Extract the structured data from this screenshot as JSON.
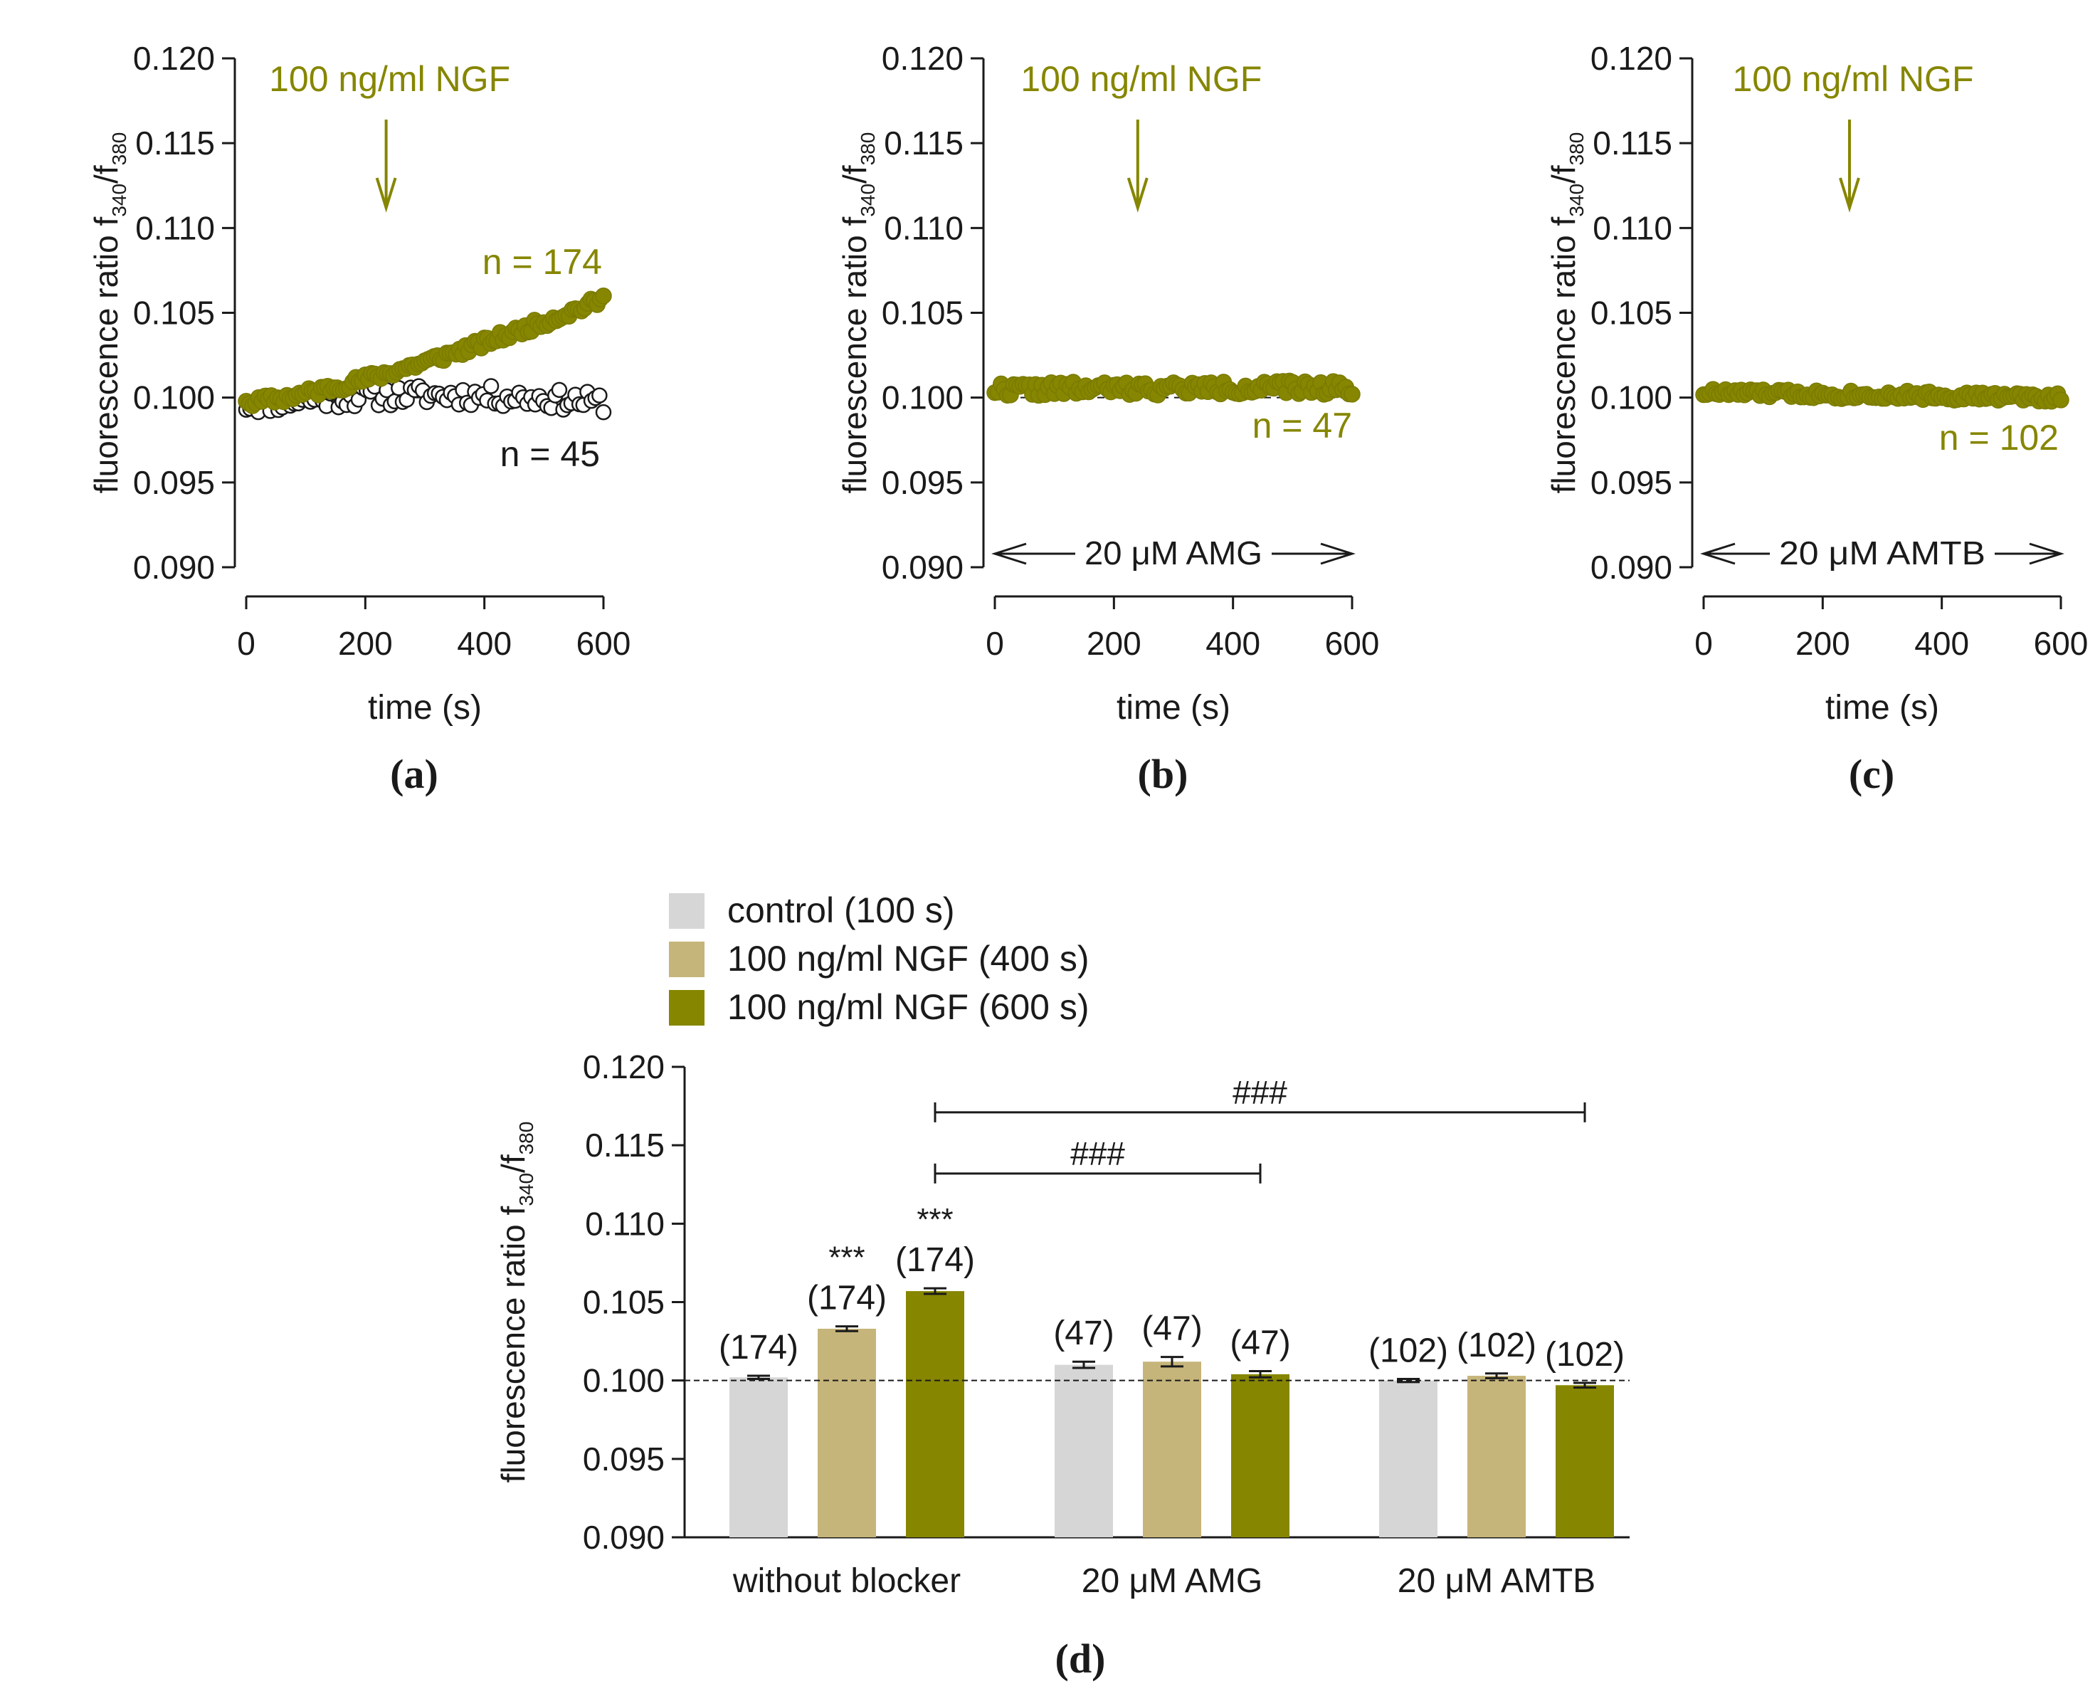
{
  "colors": {
    "olive": "#868600",
    "tan": "#c6b57a",
    "lightgray": "#d6d6d6",
    "black": "#1a1a1a"
  },
  "chart_data": [
    {
      "panel": "a",
      "type": "scatter",
      "panel_label": "(a)",
      "xlabel": "time (s)",
      "ylabel_main": "fluorescence ratio f",
      "ylabel_sub1": "340",
      "ylabel_slash": "/f",
      "ylabel_sub2": "380",
      "xlim": [
        0,
        600
      ],
      "ylim": [
        0.09,
        0.12
      ],
      "xticks": [
        0,
        200,
        400,
        600
      ],
      "xtick_labels": [
        "0",
        "200",
        "400",
        "600"
      ],
      "yticks": [
        0.09,
        0.095,
        0.1,
        0.105,
        0.11,
        0.115,
        0.12
      ],
      "ytick_labels": [
        "0.090",
        "0.095",
        "0.100",
        "0.105",
        "0.110",
        "0.115",
        "0.120"
      ],
      "annotation": "100 ng/ml NGF",
      "arrow_at_time": 235,
      "bar_label": "",
      "series": [
        {
          "name": "NGF",
          "n_label": "n = 174",
          "style": "filled",
          "count": 115,
          "start": 0.0997,
          "end": 0.1058,
          "shape": "ramp",
          "noise": 0.0003
        },
        {
          "name": "control",
          "n_label": "n = 45",
          "style": "open",
          "count": 90,
          "start": 0.0996,
          "end": 0.0997,
          "shape": "hump",
          "noise": 0.0006
        }
      ]
    },
    {
      "panel": "b",
      "type": "scatter",
      "panel_label": "(b)",
      "xlabel": "time (s)",
      "ylabel_main": "fluorescence ratio f",
      "ylabel_sub1": "340",
      "ylabel_slash": "/f",
      "ylabel_sub2": "380",
      "xlim": [
        0,
        600
      ],
      "ylim": [
        0.09,
        0.12
      ],
      "xticks": [
        0,
        200,
        400,
        600
      ],
      "xtick_labels": [
        "0",
        "200",
        "400",
        "600"
      ],
      "yticks": [
        0.09,
        0.095,
        0.1,
        0.105,
        0.11,
        0.115,
        0.12
      ],
      "ytick_labels": [
        "0.090",
        "0.095",
        "0.100",
        "0.105",
        "0.110",
        "0.115",
        "0.120"
      ],
      "annotation": "100 ng/ml NGF",
      "arrow_at_time": 240,
      "bar_label": "20 μM AMG",
      "series": [
        {
          "name": "NGF + AMG",
          "n_label": "n = 47",
          "style": "filled",
          "count": 115,
          "start": 0.1005,
          "end": 0.1006,
          "shape": "flat",
          "noise": 0.0004
        }
      ]
    },
    {
      "panel": "c",
      "type": "scatter",
      "panel_label": "(c)",
      "xlabel": "time (s)",
      "ylabel_main": "fluorescence ratio f",
      "ylabel_sub1": "340",
      "ylabel_slash": "/f",
      "ylabel_sub2": "380",
      "xlim": [
        0,
        600
      ],
      "ylim": [
        0.09,
        0.12
      ],
      "xticks": [
        0,
        200,
        400,
        600
      ],
      "xtick_labels": [
        "0",
        "200",
        "400",
        "600"
      ],
      "yticks": [
        0.09,
        0.095,
        0.1,
        0.105,
        0.11,
        0.115,
        0.12
      ],
      "ytick_labels": [
        "0.090",
        "0.095",
        "0.100",
        "0.105",
        "0.110",
        "0.115",
        "0.120"
      ],
      "annotation": "100 ng/ml NGF",
      "arrow_at_time": 245,
      "bar_label": "20 μM AMTB",
      "series": [
        {
          "name": "NGF + AMTB",
          "n_label": "n = 102",
          "style": "filled",
          "count": 115,
          "start": 0.1003,
          "end": 0.1,
          "shape": "flat",
          "noise": 0.00025
        }
      ]
    },
    {
      "panel": "d",
      "type": "bar",
      "panel_label": "(d)",
      "xlabel": "",
      "ylabel_main": "fluorescence ratio f",
      "ylabel_sub1": "340",
      "ylabel_slash": "/f",
      "ylabel_sub2": "380",
      "ylim": [
        0.09,
        0.12
      ],
      "yticks": [
        0.09,
        0.095,
        0.1,
        0.105,
        0.11,
        0.115,
        0.12
      ],
      "ytick_labels": [
        "0.090",
        "0.095",
        "0.100",
        "0.105",
        "0.110",
        "0.115",
        "0.120"
      ],
      "reference_line": 0.1,
      "legend": [
        {
          "label": "control (100 s)",
          "color_key": "lightgray"
        },
        {
          "label": "100 ng/ml NGF (400 s)",
          "color_key": "tan"
        },
        {
          "label": "100 ng/ml NGF (600 s)",
          "color_key": "olive"
        }
      ],
      "groups": [
        {
          "label": "without blocker",
          "bars": [
            {
              "series": "control (100 s)",
              "value": 0.1002,
              "error": 0.0001,
              "n_label": "(174)",
              "sig": ""
            },
            {
              "series": "100 ng/ml NGF (400 s)",
              "value": 0.1033,
              "error": 0.00015,
              "n_label": "(174)",
              "sig": "***"
            },
            {
              "series": "100 ng/ml NGF (600 s)",
              "value": 0.1057,
              "error": 0.00018,
              "n_label": "(174)",
              "sig": "***"
            }
          ]
        },
        {
          "label": "20 μM AMG",
          "bars": [
            {
              "series": "control (100 s)",
              "value": 0.101,
              "error": 0.0002,
              "n_label": "(47)",
              "sig": ""
            },
            {
              "series": "100 ng/ml NGF (400 s)",
              "value": 0.1012,
              "error": 0.0003,
              "n_label": "(47)",
              "sig": ""
            },
            {
              "series": "100 ng/ml NGF (600 s)",
              "value": 0.1004,
              "error": 0.0002,
              "n_label": "(47)",
              "sig": ""
            }
          ]
        },
        {
          "label": "20 μM AMTB",
          "bars": [
            {
              "series": "control (100 s)",
              "value": 0.1,
              "error": 0.0001,
              "n_label": "(102)",
              "sig": ""
            },
            {
              "series": "100 ng/ml NGF (400 s)",
              "value": 0.1003,
              "error": 0.00015,
              "n_label": "(102)",
              "sig": ""
            },
            {
              "series": "100 ng/ml NGF (600 s)",
              "value": 0.0997,
              "error": 0.00015,
              "n_label": "(102)",
              "sig": ""
            }
          ]
        }
      ],
      "comparisons": [
        {
          "from": "without blocker / 100 ng/ml NGF (600 s)",
          "to": "20 μM AMG / 100 ng/ml NGF (600 s)",
          "label": "###",
          "y": 0.1132
        },
        {
          "from": "without blocker / 100 ng/ml NGF (600 s)",
          "to": "20 μM AMTB / 100 ng/ml NGF (600 s)",
          "label": "###",
          "y": 0.1171
        }
      ]
    }
  ]
}
